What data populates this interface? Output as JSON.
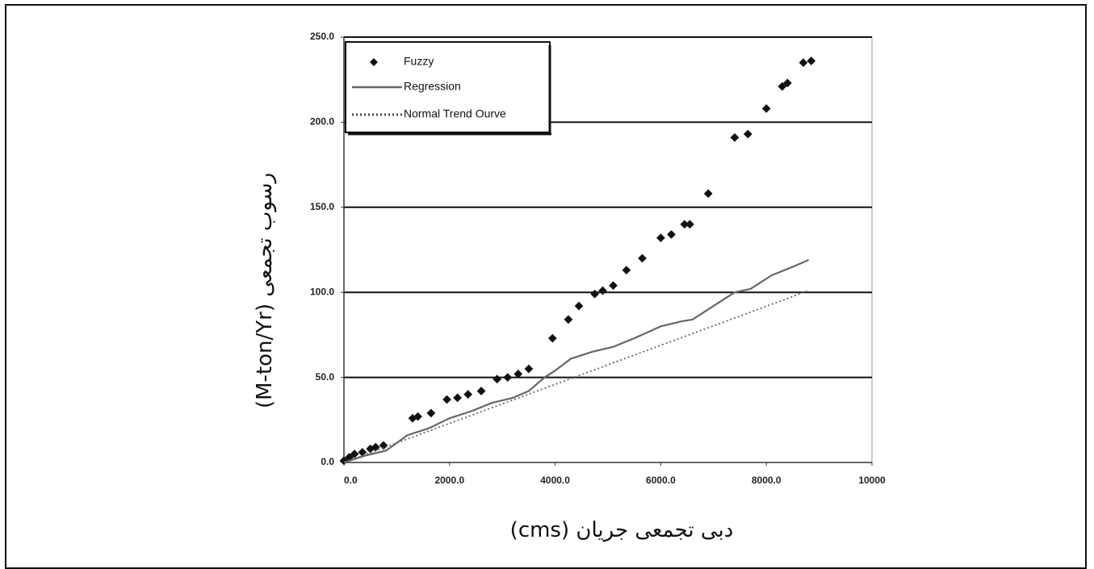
{
  "chart_data": {
    "type": "scatter",
    "ylabel": "رسوب تجمعی (M-ton/Yr)",
    "xlabel": "دبی تجمعی جریان (cms)",
    "xlim": [
      0,
      10000
    ],
    "ylim": [
      0,
      250
    ],
    "x_ticks": [
      0,
      2000,
      4000,
      6000,
      8000,
      10000
    ],
    "x_tick_labels": [
      "0.0",
      "2000.0",
      "4000.0",
      "6000.0",
      "8000.0",
      "10000"
    ],
    "y_ticks": [
      0,
      50,
      100,
      150,
      200,
      250
    ],
    "y_tick_labels": [
      "0.0",
      "50.0",
      "100.0",
      "150.0",
      "200.0",
      "250.0"
    ],
    "grid": "horizontal",
    "legend_position": "top-left",
    "series": [
      {
        "name": "Fuzzy",
        "kind": "scatter",
        "color": "#111111",
        "x": [
          0,
          100,
          200,
          350,
          500,
          600,
          750,
          1300,
          1400,
          1650,
          1950,
          2150,
          2350,
          2600,
          2900,
          3100,
          3300,
          3500,
          3950,
          4250,
          4450,
          4750,
          4900,
          5100,
          5350,
          5650,
          6000,
          6200,
          6450,
          6550,
          6900,
          7400,
          7650,
          8000,
          8300,
          8400,
          8700,
          8850
        ],
        "y": [
          1,
          3,
          5,
          6,
          8,
          9,
          10,
          26,
          27,
          29,
          37,
          38,
          40,
          42,
          49,
          50,
          52,
          55,
          73,
          84,
          92,
          99,
          101,
          104,
          113,
          120,
          132,
          134,
          140,
          140,
          158,
          191,
          193,
          208,
          221,
          223,
          235,
          236
        ]
      },
      {
        "name": "Regression",
        "kind": "line",
        "color": "#666666",
        "x": [
          0,
          400,
          800,
          1200,
          1600,
          2000,
          2400,
          2800,
          3200,
          3500,
          3800,
          4000,
          4300,
          4700,
          5100,
          5500,
          6000,
          6400,
          6600,
          7000,
          7400,
          7700,
          8100,
          8500,
          8800
        ],
        "y": [
          0,
          4,
          7,
          16,
          20,
          26,
          30,
          35,
          38,
          42,
          50,
          54,
          61,
          65,
          68,
          73,
          80,
          83,
          84,
          92,
          100,
          102,
          110,
          115,
          119
        ]
      },
      {
        "name": "Normal Trend Ourve",
        "kind": "line-dotted",
        "color": "#666666",
        "x": [
          0,
          8800
        ],
        "y": [
          0,
          101
        ]
      }
    ]
  }
}
